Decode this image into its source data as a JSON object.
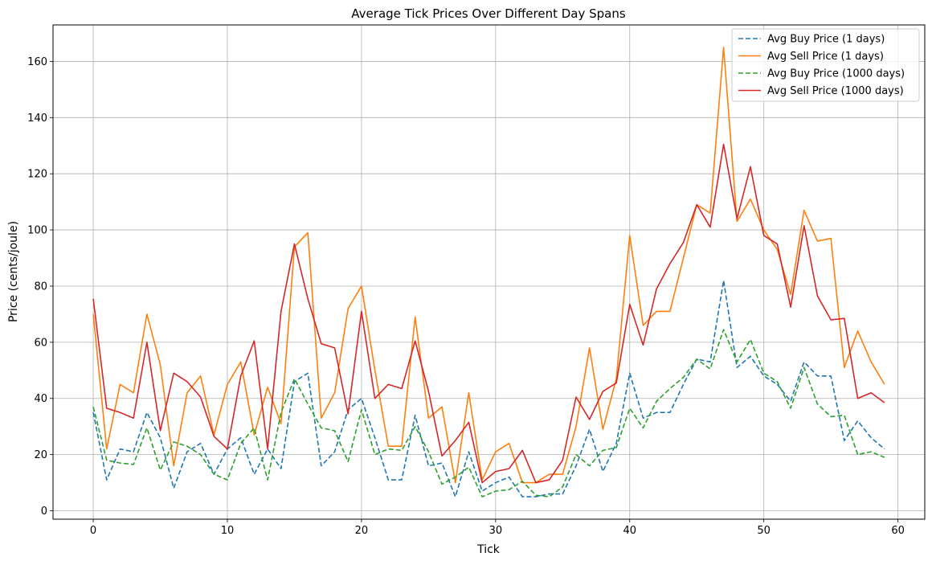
{
  "chart_data": {
    "type": "line",
    "title": "Average Tick Prices Over Different Day Spans",
    "xlabel": "Tick",
    "ylabel": "Price (cents/joule)",
    "xlim": [
      -3,
      62
    ],
    "ylim": [
      -3,
      173
    ],
    "xticks": [
      0,
      10,
      20,
      30,
      40,
      50,
      60
    ],
    "yticks": [
      0,
      20,
      40,
      60,
      80,
      100,
      120,
      140,
      160
    ],
    "grid": true,
    "legend_position": "top-right",
    "x": [
      0,
      1,
      2,
      3,
      4,
      5,
      6,
      7,
      8,
      9,
      10,
      11,
      12,
      13,
      14,
      15,
      16,
      17,
      18,
      19,
      20,
      21,
      22,
      23,
      24,
      25,
      26,
      27,
      28,
      29,
      30,
      31,
      32,
      33,
      34,
      35,
      36,
      37,
      38,
      39,
      40,
      41,
      42,
      43,
      44,
      45,
      46,
      47,
      48,
      49,
      50,
      51,
      52,
      53,
      54,
      55,
      56,
      57,
      58,
      59
    ],
    "series": [
      {
        "name": "Avg Buy Price (1 days)",
        "color": "#1f77b4",
        "dash": "dashed",
        "values": [
          35,
          11,
          22,
          21,
          35,
          26,
          8,
          21,
          24,
          13,
          22,
          26,
          13,
          22,
          15,
          46,
          49,
          16,
          21,
          36,
          40,
          26,
          11,
          11,
          34,
          16,
          17,
          5,
          21,
          7,
          10,
          12,
          5,
          5,
          6,
          6,
          16,
          29,
          14,
          24,
          49,
          33,
          35,
          35,
          45,
          54,
          53,
          82,
          51,
          55,
          48,
          45,
          39,
          53,
          48,
          48,
          25,
          32,
          26,
          22
        ]
      },
      {
        "name": "Avg Sell Price (1 days)",
        "color": "#ff7f0e",
        "dash": "solid",
        "values": [
          70,
          22,
          45,
          42,
          70,
          52,
          16,
          42,
          48,
          27,
          45,
          53,
          27,
          44,
          31,
          94,
          99,
          33,
          42,
          72,
          80,
          50,
          23,
          23,
          69,
          33,
          37,
          10,
          42,
          11,
          21,
          24,
          10,
          10,
          13,
          13,
          30,
          58,
          29,
          47,
          98,
          66,
          71,
          71,
          90,
          109,
          106,
          165,
          103,
          111,
          100,
          93,
          77,
          107,
          96,
          97,
          51,
          64,
          53,
          45
        ]
      },
      {
        "name": "Avg Buy Price (1000 days)",
        "color": "#2ca02c",
        "dash": "dashed",
        "values": [
          37,
          18,
          17,
          16.5,
          29.5,
          14.5,
          24.5,
          23,
          20,
          13,
          11,
          24,
          29.5,
          11,
          35,
          47,
          38,
          29.5,
          28.5,
          17.5,
          36,
          20,
          22,
          21.5,
          30,
          21,
          9.5,
          12,
          15.5,
          5,
          7,
          7.5,
          10.5,
          5.5,
          5,
          8.5,
          20,
          16,
          21.5,
          22.5,
          36.5,
          29.5,
          39,
          43.5,
          47.5,
          54,
          50.5,
          64.5,
          53,
          61,
          49,
          46,
          36.5,
          51,
          38,
          33.5,
          34,
          20,
          21,
          19
        ]
      },
      {
        "name": "Avg Sell Price (1000 days)",
        "color": "#d62728",
        "dash": "solid",
        "values": [
          75.5,
          36.5,
          35,
          33,
          60,
          28.5,
          49,
          46,
          40.5,
          26.5,
          22,
          48,
          60.5,
          22,
          71,
          95,
          75.5,
          59.5,
          58,
          34.5,
          71,
          40,
          45,
          43.5,
          60.5,
          42.5,
          19.5,
          25,
          31.5,
          10,
          14,
          15,
          21.5,
          10,
          11,
          18,
          40.5,
          32.5,
          42.5,
          45.5,
          73.5,
          59,
          79,
          88,
          95.5,
          109,
          101,
          130.5,
          104,
          122.5,
          98,
          95,
          72.5,
          101.5,
          76.5,
          68,
          68.5,
          40,
          42,
          38.5
        ]
      }
    ]
  }
}
